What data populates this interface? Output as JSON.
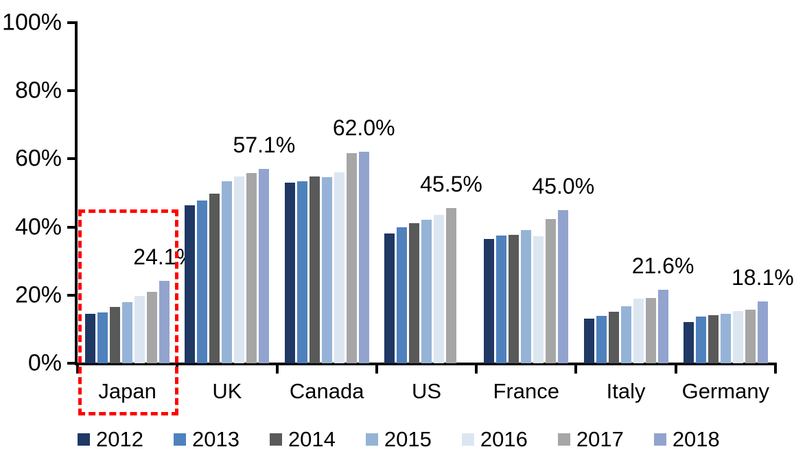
{
  "chart_data": {
    "type": "bar",
    "title": "",
    "xlabel": "",
    "ylabel": "",
    "ylim": [
      0,
      100
    ],
    "y_ticks": [
      "0%",
      "20%",
      "40%",
      "60%",
      "80%",
      "100%"
    ],
    "grid": false,
    "legend_position": "bottom",
    "categories": [
      "Japan",
      "UK",
      "Canada",
      "US",
      "France",
      "Italy",
      "Germany"
    ],
    "series": [
      {
        "name": "2012",
        "color": "#1F3864",
        "values": [
          14.6,
          46.3,
          53.0,
          38.2,
          36.4,
          13.2,
          12.2
        ]
      },
      {
        "name": "2013",
        "color": "#4F81BD",
        "values": [
          14.9,
          47.8,
          53.4,
          40.0,
          37.6,
          14.0,
          13.8
        ]
      },
      {
        "name": "2014",
        "color": "#595959",
        "values": [
          16.5,
          49.9,
          54.9,
          41.2,
          37.7,
          15.2,
          14.2
        ]
      },
      {
        "name": "2015",
        "color": "#95B3D7",
        "values": [
          17.9,
          53.4,
          54.6,
          42.2,
          39.2,
          16.7,
          14.6
        ]
      },
      {
        "name": "2016",
        "color": "#DCE6F1",
        "values": [
          19.8,
          54.8,
          56.1,
          43.6,
          37.3,
          18.9,
          15.4
        ]
      },
      {
        "name": "2017",
        "color": "#A6A6A6",
        "values": [
          21.0,
          55.9,
          61.7,
          45.5,
          42.3,
          19.1,
          15.8
        ]
      },
      {
        "name": "2018",
        "color": "#92A3CE",
        "values": [
          24.1,
          57.1,
          62.0,
          null,
          45.0,
          21.6,
          18.1
        ]
      }
    ],
    "data_labels": [
      "24.1%",
      "57.1%",
      "62.0%",
      "45.5%",
      "45.0%",
      "21.6%",
      "18.1%"
    ],
    "annotation": {
      "type": "dashed-rectangle",
      "target_category": "Japan",
      "color": "#FF0000"
    }
  }
}
